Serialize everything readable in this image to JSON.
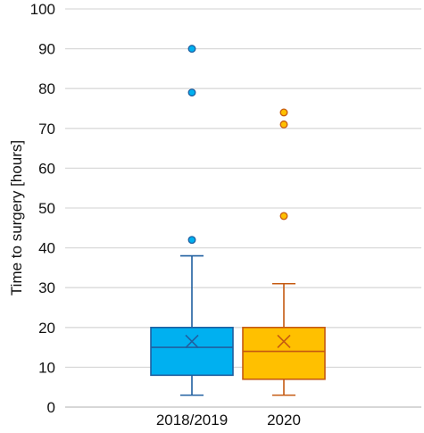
{
  "chart_data": {
    "type": "box",
    "title": "",
    "xlabel": "",
    "ylabel": "Time to surgery [hours]",
    "ylim": [
      0,
      100
    ],
    "yticks": [
      0,
      10,
      20,
      30,
      40,
      50,
      60,
      70,
      80,
      90,
      100
    ],
    "grid": true,
    "legend": "none",
    "categories": [
      "2018/2019",
      "2020"
    ],
    "series": [
      {
        "category": "2018/2019",
        "color": "#00B0F0",
        "edge_color": "#1F5FA0",
        "whisker_low": 3,
        "q1": 8,
        "median": 15,
        "mean": 16.5,
        "q3": 20,
        "whisker_high": 38,
        "outliers": [
          42,
          79,
          90
        ]
      },
      {
        "category": "2020",
        "color": "#FFC000",
        "edge_color": "#C55A11",
        "whisker_low": 3,
        "q1": 7,
        "median": 14,
        "mean": 16.5,
        "q3": 20,
        "whisker_high": 31,
        "outliers": [
          48,
          71,
          74
        ]
      }
    ]
  }
}
